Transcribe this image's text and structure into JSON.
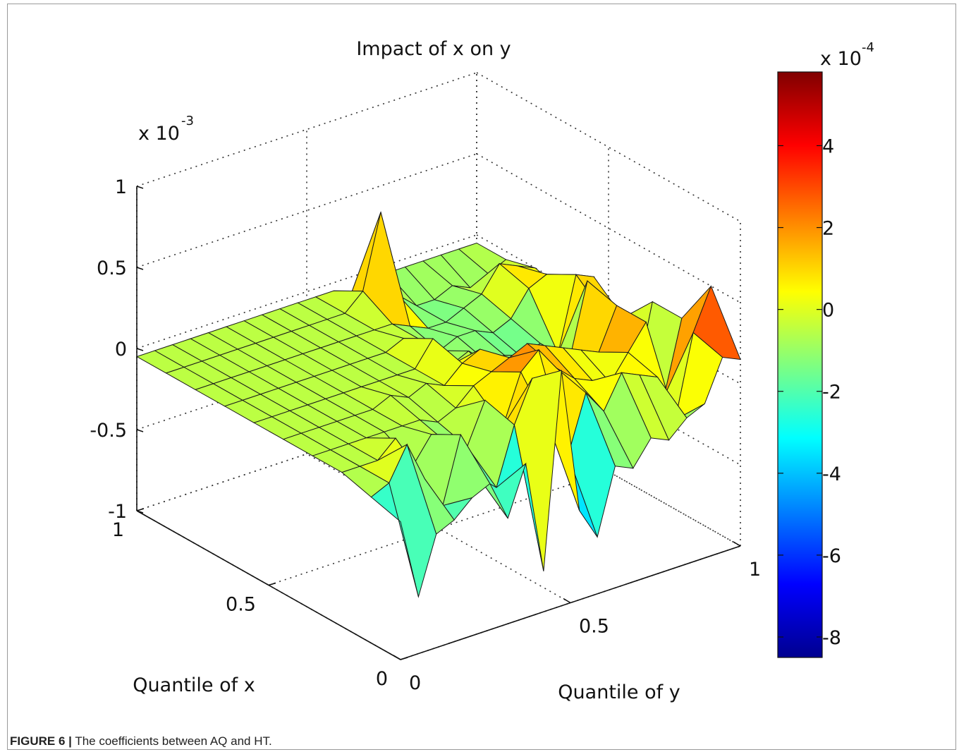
{
  "caption": {
    "label": "FIGURE 6 |",
    "text": "The coefficients between AQ and HT."
  },
  "chart_data": {
    "type": "surface",
    "title": "Impact of x on y",
    "xlabel": "Quantile of x",
    "ylabel": "Quantile of y",
    "z_multiplier": "x 10",
    "z_exponent": "-3",
    "x_ticks": [
      "0",
      "0.5",
      "1"
    ],
    "y_ticks": [
      "0",
      "0.5",
      "1"
    ],
    "z_ticks": [
      "-1",
      "-0.5",
      "0",
      "0.5",
      "1"
    ],
    "zlim": [
      -1,
      1
    ],
    "xlim": [
      0,
      1
    ],
    "ylim": [
      0,
      1
    ],
    "grid": true,
    "colorbar": {
      "colormap": "jet",
      "multiplier": "x 10",
      "exponent": "-4",
      "ticks": [
        "4",
        "2",
        "0",
        "-2",
        "-4",
        "-6",
        "-8"
      ],
      "range": [
        -8.5,
        5.8
      ]
    },
    "z_values_e-4": [
      [
        -1.5,
        -6.5,
        -3.0,
        -2.5,
        -1.5,
        -1.0,
        -3.5,
        -0.5,
        -7.5,
        4.5,
        -4.5,
        -6.5,
        -2.5,
        -3.0,
        -1.5,
        -2.0,
        -1.0,
        -0.5,
        2.0,
        1.5
      ],
      [
        -1.0,
        -0.5,
        1.5,
        -1.0,
        -3.0,
        1.0,
        -2.0,
        -3.0,
        0.5,
        3.0,
        -0.5,
        -2.5,
        1.0,
        -0.5,
        1.5,
        1.0,
        0.5,
        -2.5,
        2.5,
        5.0
      ],
      [
        -0.5,
        -0.5,
        -0.5,
        0.5,
        -1.5,
        0.0,
        -1.0,
        -1.5,
        1.0,
        -1.0,
        2.0,
        3.0,
        1.5,
        0.5,
        0.0,
        -0.5,
        1.0,
        2.5,
        -2.5,
        2.0
      ],
      [
        -0.5,
        -0.5,
        -0.5,
        -0.5,
        -0.5,
        -0.5,
        -0.5,
        -1.0,
        -0.5,
        0.5,
        1.0,
        1.5,
        2.0,
        1.5,
        1.0,
        0.5,
        0.0,
        2.5,
        -3.0,
        2.0
      ],
      [
        -0.5,
        -0.5,
        -0.5,
        -0.5,
        -0.5,
        -0.5,
        0.0,
        -0.5,
        0.0,
        -0.5,
        0.5,
        1.0,
        -1.5,
        -1.0,
        -0.5,
        -1.0,
        -1.5,
        3.0,
        0.5,
        0.0
      ],
      [
        -0.5,
        -0.5,
        -0.5,
        -0.5,
        -0.5,
        -0.5,
        -0.5,
        -0.5,
        -0.5,
        -0.5,
        1.0,
        -1.0,
        -0.5,
        -1.5,
        -1.5,
        -2.0,
        -1.5,
        -2.5,
        2.0,
        1.5
      ],
      [
        -0.5,
        -0.5,
        -0.5,
        -0.5,
        -0.5,
        -0.5,
        -0.5,
        -0.5,
        -0.5,
        -0.5,
        0.0,
        -0.5,
        -1.5,
        -1.0,
        -1.0,
        -1.5,
        -1.0,
        0.5,
        1.0,
        -0.5
      ],
      [
        -0.5,
        -0.5,
        -0.5,
        -0.5,
        -0.5,
        -0.5,
        -0.5,
        -0.5,
        -0.5,
        -0.5,
        -0.5,
        -0.5,
        -1.0,
        -1.5,
        -1.5,
        -1.0,
        -0.5,
        1.0,
        0.5,
        0.0
      ],
      [
        -0.5,
        -0.5,
        -0.5,
        -0.5,
        -0.5,
        -0.5,
        -0.5,
        -0.5,
        -0.5,
        -0.5,
        -0.5,
        0.5,
        5.0,
        -0.5,
        -1.5,
        -1.5,
        -1.0,
        -1.5,
        -1.0,
        -0.5
      ],
      [
        -0.5,
        -0.5,
        -0.5,
        -0.5,
        -0.5,
        -0.5,
        -0.5,
        -0.5,
        -0.5,
        -0.5,
        -0.5,
        -0.5,
        -1.0,
        -0.5,
        -0.5,
        -0.5,
        -0.5,
        -0.5,
        -0.5,
        -0.5
      ]
    ]
  }
}
